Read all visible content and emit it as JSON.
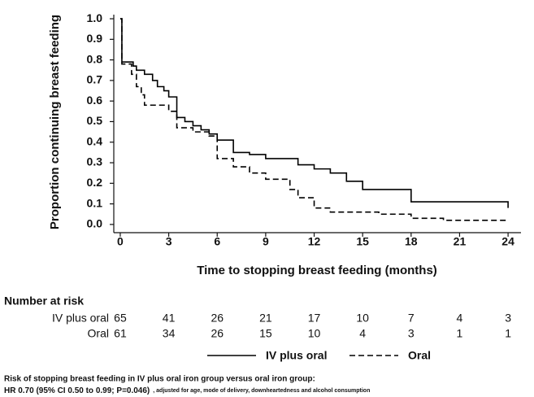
{
  "chart_data": {
    "type": "step",
    "ylabel": "Proportion continuing breast feeding",
    "xlabel": "Time to stopping breast feeding (months)",
    "xlim": [
      -0.4,
      24.8
    ],
    "ylim": [
      -0.04,
      1.02
    ],
    "xticks": [
      0,
      3,
      6,
      9,
      12,
      15,
      18,
      21,
      24
    ],
    "yticks": [
      {
        "value": 1,
        "label": "1.0"
      },
      {
        "value": 0.9,
        "label": "0.9"
      },
      {
        "value": 0.8,
        "label": "0.8"
      },
      {
        "value": 0.7,
        "label": "0.7"
      },
      {
        "value": 0.6,
        "label": "0.6"
      },
      {
        "value": 0.5,
        "label": "0.5"
      },
      {
        "value": 0.4,
        "label": "0.4"
      },
      {
        "value": 0.3,
        "label": "0.3"
      },
      {
        "value": 0.2,
        "label": "0.2"
      },
      {
        "value": 0.1,
        "label": "0.1"
      },
      {
        "value": 0,
        "label": "0.0"
      }
    ],
    "series": [
      {
        "name": "IV plus oral",
        "color": "#000000",
        "dash": "solid",
        "x": [
          0,
          0.1,
          0.8,
          1.0,
          1.5,
          2.0,
          2.3,
          2.7,
          3.0,
          3.5,
          4.0,
          4.5,
          5.0,
          5.5,
          6.0,
          7.0,
          8.0,
          9.0,
          11.0,
          12.0,
          13.0,
          14.0,
          15.0,
          18.0,
          24.0
        ],
        "values": [
          1.0,
          0.79,
          0.77,
          0.75,
          0.73,
          0.7,
          0.67,
          0.65,
          0.62,
          0.52,
          0.5,
          0.48,
          0.46,
          0.44,
          0.41,
          0.35,
          0.34,
          0.32,
          0.29,
          0.27,
          0.25,
          0.21,
          0.17,
          0.11,
          0.08
        ]
      },
      {
        "name": "Oral",
        "color": "#000000",
        "dash": "dashed",
        "x": [
          0,
          0.1,
          0.7,
          1.0,
          1.3,
          1.5,
          3.0,
          3.5,
          4.5,
          5.5,
          6.0,
          7.0,
          8.0,
          9.0,
          10.5,
          11.0,
          12.0,
          13.0,
          16.0,
          18.0,
          20.0,
          24.0
        ],
        "values": [
          1.0,
          0.78,
          0.73,
          0.67,
          0.63,
          0.58,
          0.55,
          0.47,
          0.45,
          0.43,
          0.32,
          0.28,
          0.25,
          0.22,
          0.17,
          0.13,
          0.08,
          0.06,
          0.05,
          0.03,
          0.02,
          0.02
        ]
      }
    ],
    "risk_table": {
      "title": "Number at risk",
      "rows": [
        {
          "name": "IV plus oral",
          "values": [
            65,
            41,
            26,
            21,
            17,
            10,
            7,
            4,
            3
          ]
        },
        {
          "name": "Oral",
          "values": [
            61,
            34,
            26,
            15,
            10,
            4,
            3,
            1,
            1
          ]
        }
      ]
    },
    "footnote": "Risk of stopping breast feeding in IV plus oral iron group versus oral iron group:",
    "footnote_result": "HR 0.70 (95% CI 0.50 to 0.99; P=0.046)",
    "footnote_adjustment": ", adjusted for age, mode of delivery, downheartedness and alcohol consumption"
  }
}
